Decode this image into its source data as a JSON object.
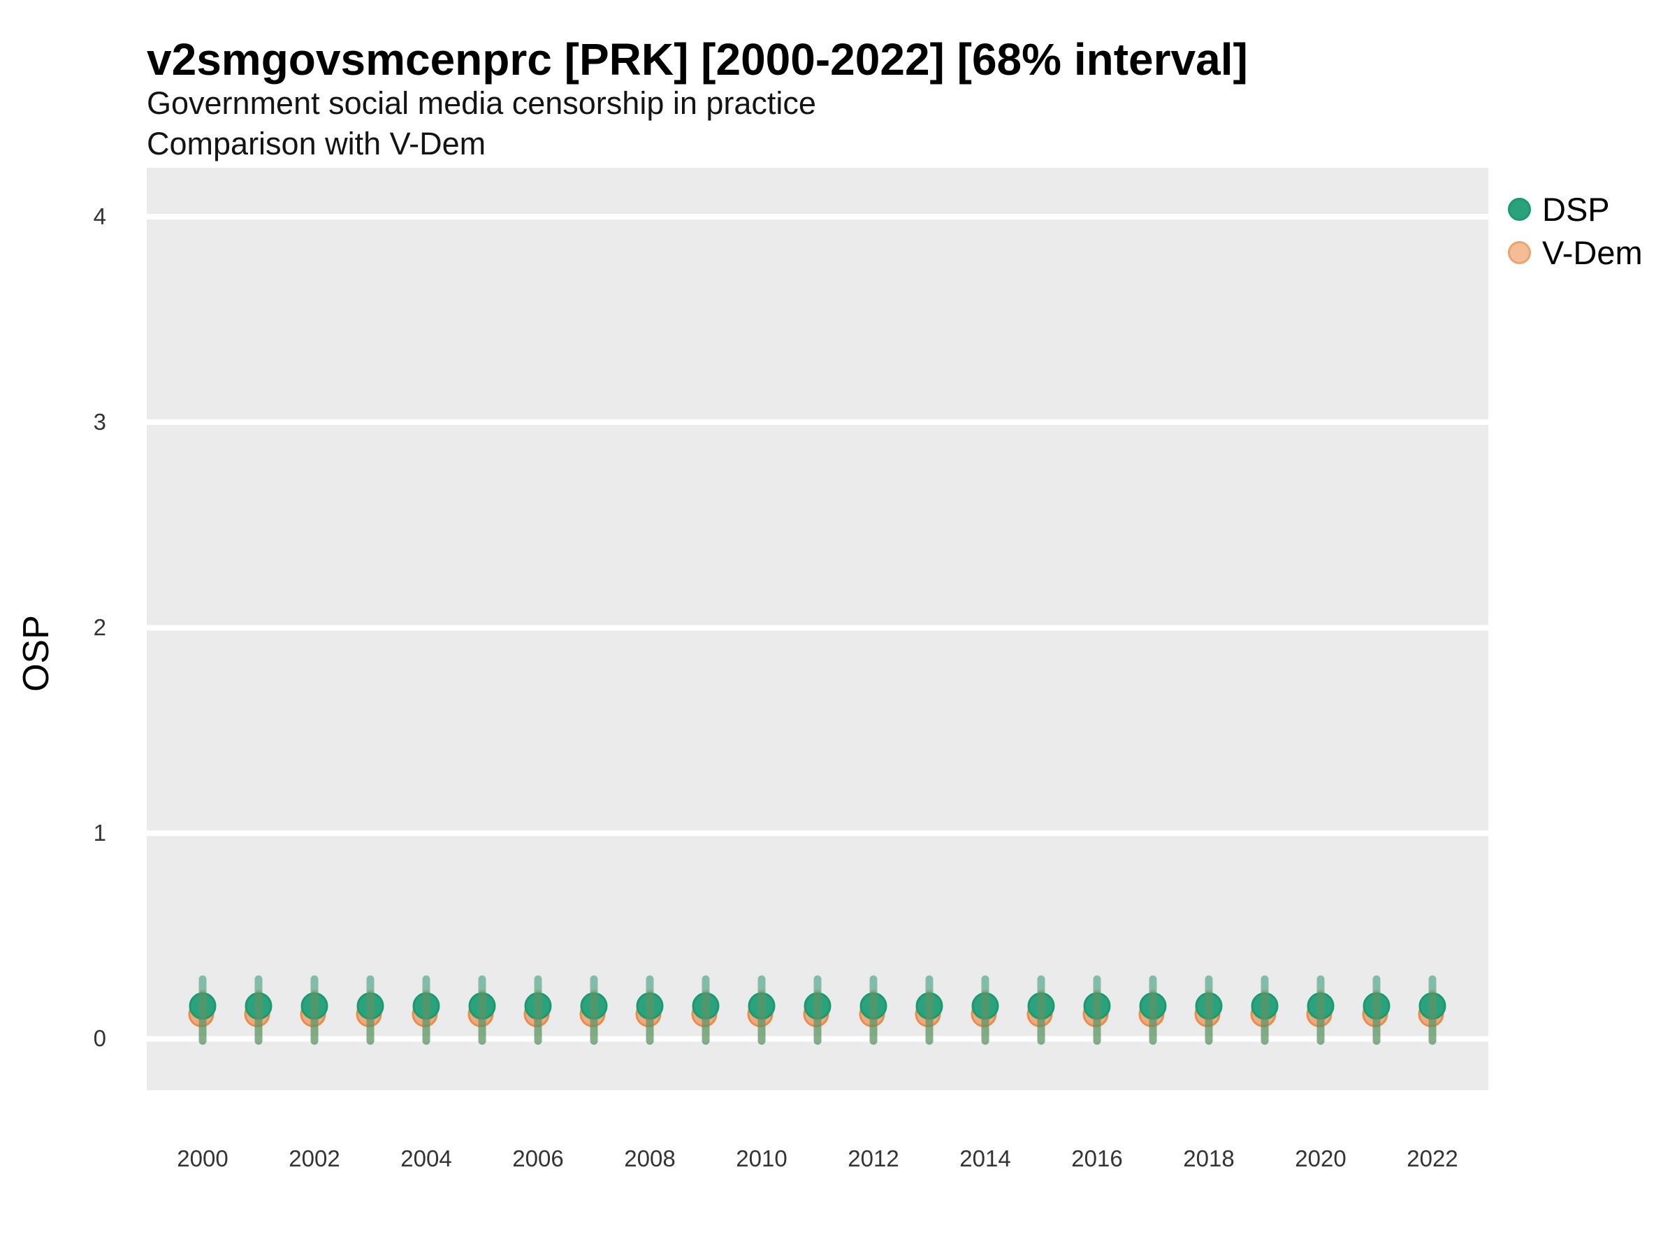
{
  "header": {
    "title": "v2smgovsmcenprc [PRK] [2000-2022] [68% interval]",
    "subtitle": "Government social media censorship in practice",
    "subtitle2": "Comparison with V-Dem"
  },
  "axes": {
    "ylabel": "OSP",
    "yticks": [
      "0",
      "1",
      "2",
      "3",
      "4"
    ],
    "xticks": [
      "2000",
      "2002",
      "2004",
      "2006",
      "2008",
      "2010",
      "2012",
      "2014",
      "2016",
      "2018",
      "2020",
      "2022"
    ]
  },
  "legend": {
    "items": [
      {
        "label": "DSP",
        "fill": "#2aa37d",
        "stroke": "#1b9a71"
      },
      {
        "label": "V-Dem",
        "fill": "#f4bd95",
        "stroke": "#eba470"
      }
    ]
  },
  "colors": {
    "panel_background": "#ebebeb",
    "gridline": "#ffffff",
    "dsp_point_fill": "#2aa37d",
    "dsp_point_stroke": "#1b9a71",
    "dsp_bar": "rgba(42,150,111,0.55)",
    "vdem_point_fill": "#f1a97c",
    "vdem_point_stroke": "#e28e55",
    "vdem_bar": "rgba(230,145,75,0.45)"
  },
  "chart_data": {
    "type": "scatter",
    "title": "v2smgovsmcenprc [PRK] [2000-2022] [68% interval]",
    "subtitle": "Government social media censorship in practice",
    "comparison_note": "Comparison with V-Dem",
    "interval": "68%",
    "xlabel": "",
    "ylabel": "OSP",
    "xlim": [
      1999,
      2023
    ],
    "ylim": [
      -0.25,
      4.238
    ],
    "yticks": [
      0,
      1,
      2,
      3,
      4
    ],
    "xticks": [
      2000,
      2002,
      2004,
      2006,
      2008,
      2010,
      2012,
      2014,
      2016,
      2018,
      2020,
      2022
    ],
    "grid": "horizontal-major-only",
    "legend_position": "top-right",
    "x": [
      2000,
      2001,
      2002,
      2003,
      2004,
      2005,
      2006,
      2007,
      2008,
      2009,
      2010,
      2011,
      2012,
      2013,
      2014,
      2015,
      2016,
      2017,
      2018,
      2019,
      2020,
      2021,
      2022
    ],
    "series": [
      {
        "name": "DSP",
        "values": [
          0.16,
          0.16,
          0.16,
          0.16,
          0.16,
          0.16,
          0.16,
          0.16,
          0.16,
          0.16,
          0.16,
          0.16,
          0.16,
          0.16,
          0.16,
          0.16,
          0.16,
          0.16,
          0.16,
          0.16,
          0.16,
          0.16,
          0.16
        ],
        "interval_low": [
          -0.01,
          -0.01,
          -0.01,
          -0.01,
          -0.01,
          -0.01,
          -0.01,
          -0.01,
          -0.01,
          -0.01,
          -0.01,
          -0.01,
          -0.01,
          -0.01,
          -0.01,
          -0.01,
          -0.01,
          -0.01,
          -0.01,
          -0.01,
          -0.01,
          -0.01,
          -0.01
        ],
        "interval_high": [
          0.29,
          0.29,
          0.29,
          0.29,
          0.29,
          0.29,
          0.29,
          0.29,
          0.29,
          0.29,
          0.29,
          0.29,
          0.29,
          0.29,
          0.29,
          0.29,
          0.29,
          0.29,
          0.29,
          0.29,
          0.29,
          0.29,
          0.29
        ]
      },
      {
        "name": "V-Dem",
        "values": [
          0.12,
          0.12,
          0.12,
          0.12,
          0.12,
          0.12,
          0.12,
          0.12,
          0.12,
          0.12,
          0.12,
          0.12,
          0.12,
          0.12,
          0.12,
          0.12,
          0.12,
          0.12,
          0.12,
          0.12,
          0.12,
          0.12,
          0.12
        ],
        "interval_low": [
          -0.01,
          -0.01,
          -0.01,
          -0.01,
          -0.01,
          -0.01,
          -0.01,
          -0.01,
          -0.01,
          -0.01,
          -0.01,
          -0.01,
          -0.01,
          -0.01,
          -0.01,
          -0.01,
          -0.01,
          -0.01,
          -0.01,
          -0.01,
          -0.01,
          -0.01,
          -0.01
        ],
        "interval_high": [
          0.22,
          0.22,
          0.22,
          0.22,
          0.22,
          0.22,
          0.22,
          0.22,
          0.22,
          0.22,
          0.22,
          0.22,
          0.22,
          0.22,
          0.22,
          0.22,
          0.22,
          0.22,
          0.22,
          0.22,
          0.22,
          0.22,
          0.22
        ]
      }
    ]
  }
}
